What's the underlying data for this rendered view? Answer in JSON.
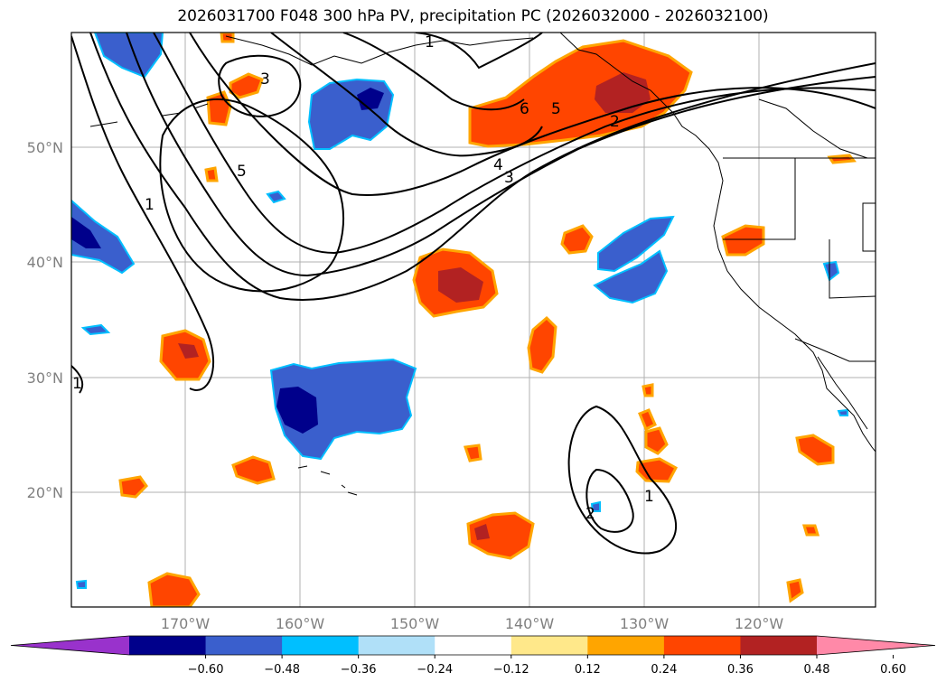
{
  "title": "2026031700 F048 300 hPa PV, precipitation PC (2026032000 - 2026032100)",
  "lat_labels": [
    "50°N",
    "40°N",
    "30°N",
    "20°N"
  ],
  "lon_labels": [
    "170°W",
    "160°W",
    "150°W",
    "140°W",
    "130°W",
    "120°W"
  ],
  "colorbar": {
    "ticks": [
      "−0.60",
      "−0.48",
      "−0.36",
      "−0.24",
      "−0.12",
      "0.12",
      "0.24",
      "0.36",
      "0.48",
      "0.60"
    ],
    "colors": [
      "#9932cc",
      "#00008b",
      "#3a5fcd",
      "#00bfff",
      "#b0e0f8",
      "#ffffff",
      "#ffe88a",
      "#ffa500",
      "#ff4500",
      "#b22222",
      "#ff89a8"
    ]
  },
  "contour_labels": [
    "1",
    "3",
    "5",
    "1",
    "1",
    "6",
    "5",
    "4",
    "3",
    "2",
    "1",
    "2"
  ],
  "colors": {
    "positive_strong": "#b22222",
    "positive": "#ff4500",
    "positive_edge": "#ffa500",
    "positive_outer": "#ffe88a",
    "negative_strong": "#00008b",
    "negative": "#3a5fcd",
    "negative_edge": "#00bfff"
  }
}
